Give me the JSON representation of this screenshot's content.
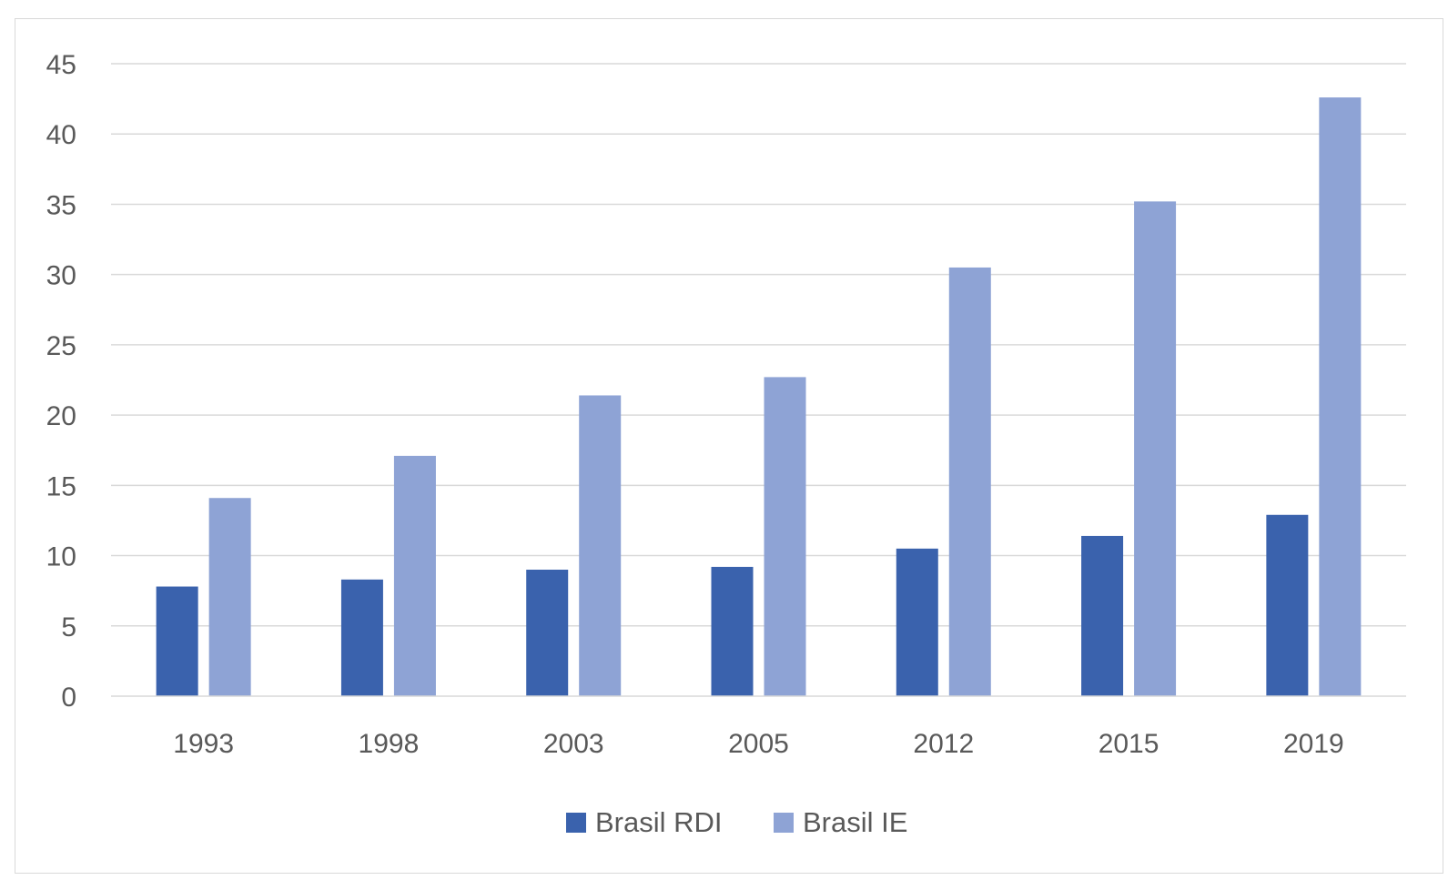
{
  "chart_data": {
    "type": "bar",
    "title": "",
    "xlabel": "",
    "ylabel": "",
    "categories": [
      "1993",
      "1998",
      "2003",
      "2005",
      "2012",
      "2015",
      "2019"
    ],
    "series": [
      {
        "name": "Brasil RDI",
        "color": "#3a62ad",
        "values": [
          7.8,
          8.3,
          9.0,
          9.2,
          10.5,
          11.4,
          12.9
        ]
      },
      {
        "name": "Brasil IE",
        "color": "#8ea3d5",
        "values": [
          14.1,
          17.1,
          21.4,
          22.7,
          30.5,
          35.2,
          42.6
        ]
      }
    ],
    "ylim": [
      0,
      45
    ],
    "yticks": [
      0,
      5,
      10,
      15,
      20,
      25,
      30,
      35,
      40,
      45
    ],
    "grid": true,
    "gridline_color": "#d9d9d9",
    "legend_position": "bottom"
  }
}
